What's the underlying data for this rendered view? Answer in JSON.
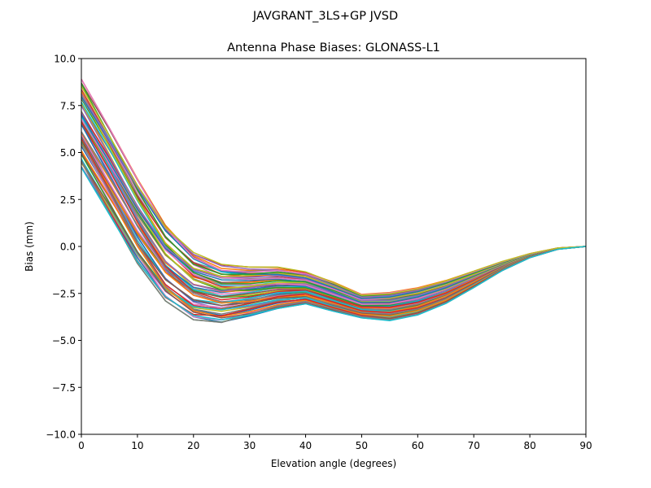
{
  "figure": {
    "suptitle": "JAVGRANT_3LS+GP JVSD"
  },
  "chart_data": {
    "type": "line",
    "title": "Antenna Phase Biases: GLONASS-L1",
    "xlabel": "Elevation angle (degrees)",
    "ylabel": "Bias (mm)",
    "xlim": [
      0,
      90
    ],
    "ylim": [
      -10,
      10
    ],
    "xticks": [
      0,
      10,
      20,
      30,
      40,
      50,
      60,
      70,
      80,
      90
    ],
    "xtick_labels": [
      "0",
      "10",
      "20",
      "30",
      "40",
      "50",
      "60",
      "70",
      "80",
      "90"
    ],
    "yticks": [
      -10,
      -7.5,
      -5,
      -2.5,
      0,
      2.5,
      5,
      7.5,
      10
    ],
    "ytick_labels": [
      "−10.0",
      "−7.5",
      "−5.0",
      "−2.5",
      "0.0",
      "2.5",
      "5.0",
      "7.5",
      "10.0"
    ],
    "grid": false,
    "legend": "none",
    "x": [
      0,
      5,
      10,
      15,
      20,
      25,
      30,
      35,
      40,
      45,
      50,
      55,
      60,
      65,
      70,
      75,
      80,
      85,
      90
    ],
    "series_count": 60,
    "series_colors": [
      "#1f77b4",
      "#ff7f0e",
      "#2ca02c",
      "#d62728",
      "#9467bd",
      "#8c564b",
      "#e377c2",
      "#7f7f7f",
      "#bcbd22",
      "#17becf"
    ],
    "envelopes": {
      "top": [
        8.9,
        6.3,
        3.6,
        1.2,
        -0.3,
        -0.95,
        -1.1,
        -1.1,
        -1.35,
        -1.9,
        -2.55,
        -2.45,
        -2.2,
        -1.8,
        -1.3,
        -0.8,
        -0.38,
        -0.08,
        0.0
      ],
      "bottom": [
        4.2,
        1.7,
        -0.9,
        -2.9,
        -3.9,
        -4.05,
        -3.7,
        -3.3,
        -3.05,
        -3.45,
        -3.8,
        -3.95,
        -3.65,
        -3.05,
        -2.2,
        -1.3,
        -0.6,
        -0.15,
        0.0
      ]
    }
  }
}
